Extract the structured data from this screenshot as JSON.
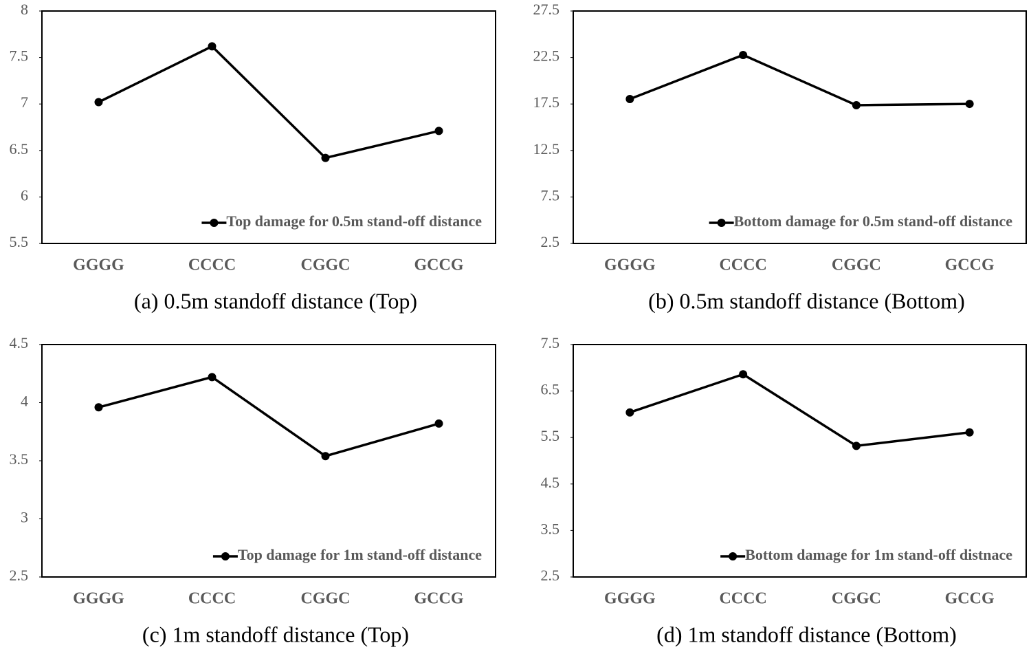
{
  "chart_data": [
    {
      "type": "line",
      "caption": "(a) 0.5m standoff distance (Top)",
      "categories": [
        "GGGG",
        "CCCC",
        "CGGC",
        "GCCG"
      ],
      "series": [
        {
          "name": "Top damage for 0.5m stand-off distance",
          "color": "#000000",
          "values": [
            7.02,
            7.62,
            6.42,
            6.71
          ]
        }
      ],
      "ylim": [
        5.5,
        8
      ],
      "yticks": [
        5.5,
        6,
        6.5,
        7,
        7.5,
        8
      ],
      "legend": "lower right"
    },
    {
      "type": "line",
      "caption": "(b) 0.5m standoff distance (Bottom)",
      "categories": [
        "GGGG",
        "CCCC",
        "CGGC",
        "GCCG"
      ],
      "series": [
        {
          "name": "Bottom damage for 0.5m stand-off distance",
          "color": "#000000",
          "values": [
            18.03,
            22.77,
            17.37,
            17.51
          ]
        }
      ],
      "ylim": [
        2.5,
        27.5
      ],
      "yticks": [
        2.5,
        7.5,
        12.5,
        17.5,
        22.5,
        27.5
      ],
      "legend": "lower right"
    },
    {
      "type": "line",
      "caption": "(c) 1m standoff distance (Top)",
      "categories": [
        "GGGG",
        "CCCC",
        "CGGC",
        "GCCG"
      ],
      "series": [
        {
          "name": "Top damage for 1m stand-off distance",
          "color": "#000000",
          "values": [
            3.96,
            4.22,
            3.54,
            3.82
          ]
        }
      ],
      "ylim": [
        2.5,
        4.5
      ],
      "yticks": [
        2.5,
        3,
        3.5,
        4,
        4.5
      ],
      "legend": "lower right"
    },
    {
      "type": "line",
      "caption": "(d) 1m standoff distance (Bottom)",
      "categories": [
        "GGGG",
        "CCCC",
        "CGGC",
        "GCCG"
      ],
      "series": [
        {
          "name": "Bottom damage for 1m stand-off distnace",
          "color": "#000000",
          "values": [
            6.04,
            6.86,
            5.32,
            5.61
          ]
        }
      ],
      "ylim": [
        2.5,
        7.5
      ],
      "yticks": [
        2.5,
        3.5,
        4.5,
        5.5,
        6.5,
        7.5
      ],
      "legend": "lower right"
    }
  ]
}
